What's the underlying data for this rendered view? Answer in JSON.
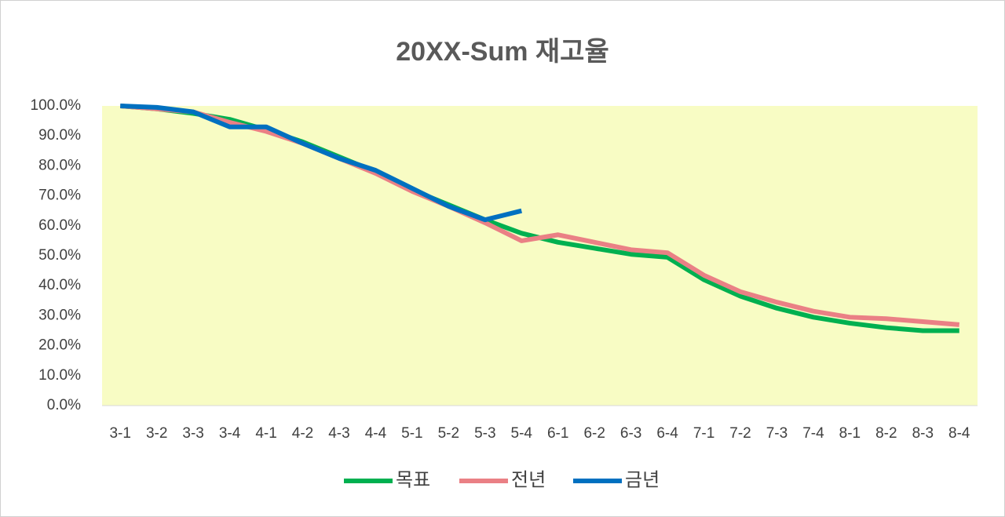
{
  "chart_data": {
    "type": "line",
    "title": "20XX-Sum 재고율",
    "categories": [
      "3-1",
      "3-2",
      "3-3",
      "3-4",
      "4-1",
      "4-2",
      "4-3",
      "4-4",
      "5-1",
      "5-2",
      "5-3",
      "5-4",
      "6-1",
      "6-2",
      "6-3",
      "6-4",
      "7-1",
      "7-2",
      "7-3",
      "7-4",
      "8-1",
      "8-2",
      "8-3",
      "8-4"
    ],
    "series": [
      {
        "name": "목표",
        "color": "#00b050",
        "values": [
          100,
          99,
          97.5,
          95.5,
          92,
          88,
          83,
          78,
          72,
          67,
          62,
          57.5,
          54.5,
          52.5,
          50.5,
          49.5,
          42,
          36.5,
          32.5,
          29.5,
          27.5,
          26,
          25,
          25
        ]
      },
      {
        "name": "전년",
        "color": "#ea8085",
        "values": [
          100,
          99,
          98,
          94.5,
          91.5,
          87.5,
          82.5,
          77.5,
          71.5,
          66.5,
          61,
          55,
          57,
          54.5,
          52,
          51,
          43.5,
          38,
          34.5,
          31.5,
          29.5,
          29,
          28,
          27
        ]
      },
      {
        "name": "금년",
        "color": "#0070c0",
        "values": [
          100,
          99.5,
          98,
          93,
          93,
          87.5,
          82.5,
          78.5,
          72.5,
          66.5,
          62,
          65,
          null,
          null,
          null,
          null,
          null,
          null,
          null,
          null,
          null,
          null,
          null,
          null
        ]
      }
    ],
    "ylim": [
      0,
      100
    ],
    "yticks": [
      {
        "value": 0,
        "label": "0.0%"
      },
      {
        "value": 10,
        "label": "10.0%"
      },
      {
        "value": 20,
        "label": "20.0%"
      },
      {
        "value": 30,
        "label": "30.0%"
      },
      {
        "value": 40,
        "label": "40.0%"
      },
      {
        "value": 50,
        "label": "50.0%"
      },
      {
        "value": 60,
        "label": "60.0%"
      },
      {
        "value": 70,
        "label": "70.0%"
      },
      {
        "value": 80,
        "label": "80.0%"
      },
      {
        "value": 90,
        "label": "90.0%"
      },
      {
        "value": 100,
        "label": "100.0%"
      }
    ],
    "plot_background": "#f8fcc4",
    "legend": "bottom"
  }
}
